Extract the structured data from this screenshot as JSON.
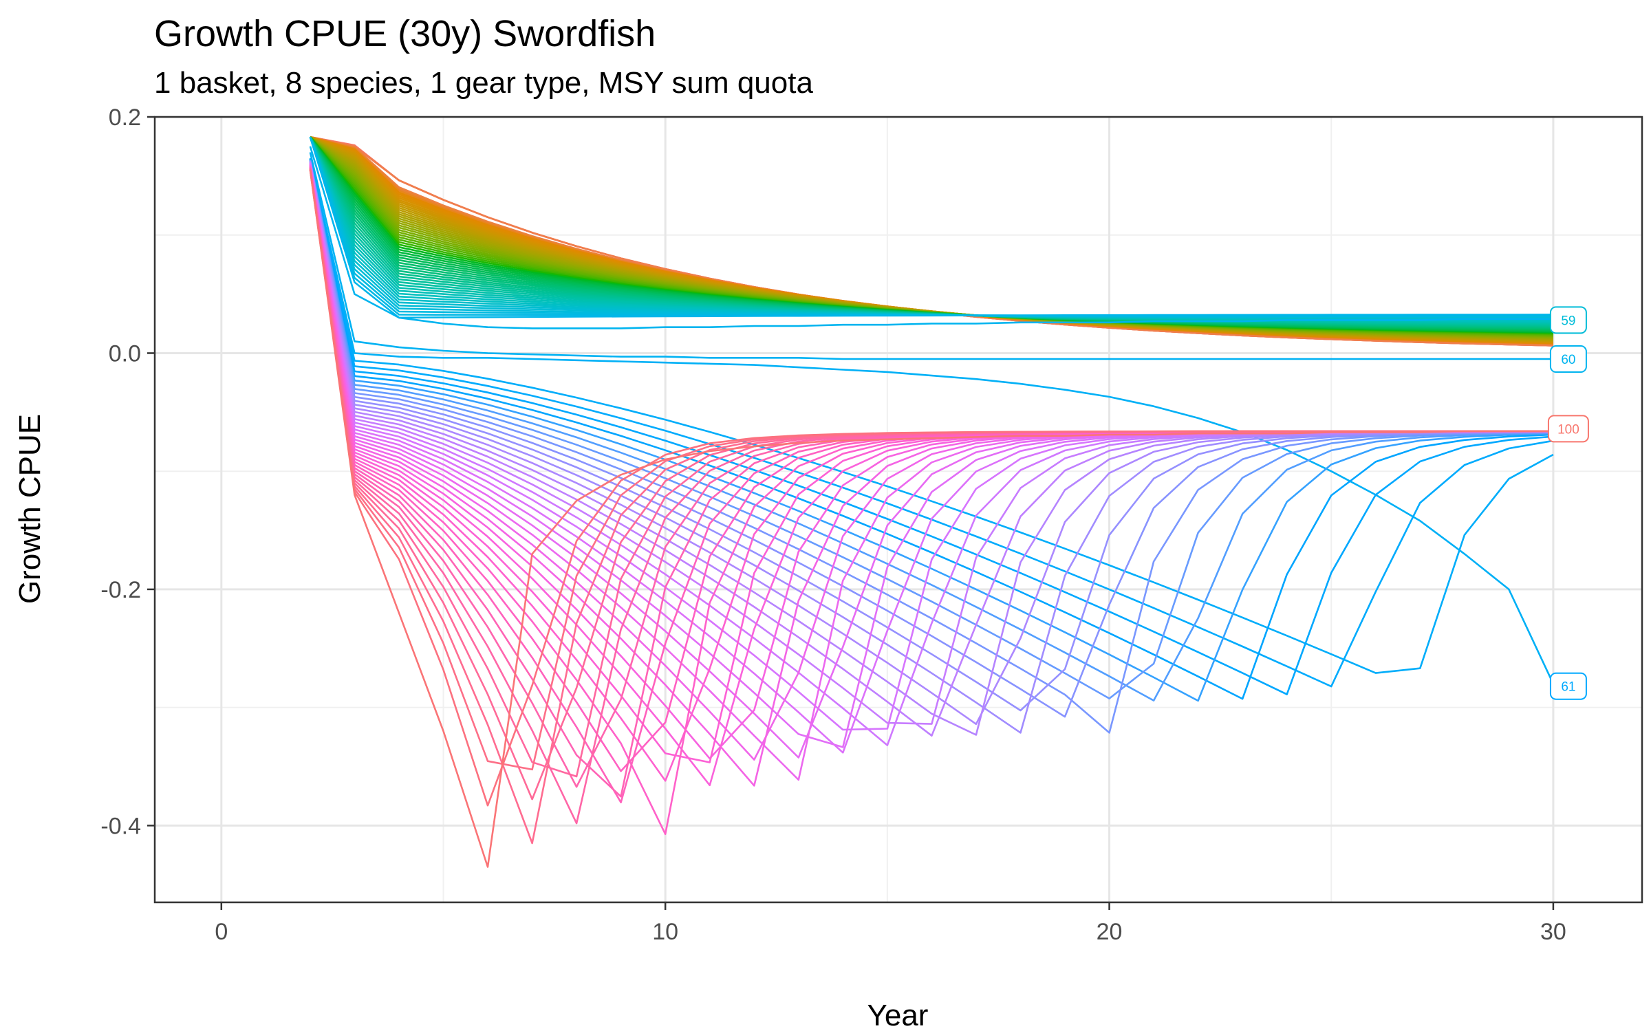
{
  "chart_data": {
    "type": "line",
    "title": "Growth CPUE (30y) Swordfish",
    "subtitle": "1 basket, 8 species, 1 gear type, MSY sum quota",
    "xlabel": "Year",
    "ylabel": "Growth CPUE",
    "xlim": [
      -1.5,
      32
    ],
    "ylim": [
      -0.465,
      0.2
    ],
    "x_ticks": [
      0,
      10,
      20,
      30
    ],
    "x_tick_labels": [
      "0",
      "10",
      "20",
      "30"
    ],
    "y_ticks": [
      0.2,
      0.0,
      -0.2,
      -0.4
    ],
    "y_tick_labels": [
      "0.2",
      "0.0",
      "-0.2",
      "-0.4"
    ],
    "grid": true,
    "legend": "none",
    "color_scale": "hue",
    "series_count": 100,
    "x": [
      2,
      3,
      4,
      5,
      6,
      7,
      8,
      9,
      10,
      11,
      12,
      13,
      14,
      15,
      16,
      17,
      18,
      19,
      20,
      21,
      22,
      23,
      24,
      25,
      26,
      27,
      28,
      29,
      30
    ],
    "representative_series": [
      {
        "name": "100",
        "color": "#F8766D",
        "values": [
          0.155,
          -0.12,
          -0.22,
          -0.32,
          -0.435,
          -0.17,
          -0.125,
          -0.103,
          -0.09,
          -0.083,
          -0.079,
          -0.076,
          -0.074,
          -0.073,
          -0.072,
          -0.071,
          -0.07,
          -0.07,
          -0.069,
          -0.069,
          -0.068,
          -0.068,
          -0.068,
          -0.067,
          -0.067,
          -0.067,
          -0.066,
          -0.066,
          -0.066
        ]
      },
      {
        "name": "61",
        "color": "#00A9FF",
        "values": [
          0.165,
          0.0,
          -0.003,
          -0.004,
          -0.004,
          -0.005,
          -0.006,
          -0.007,
          -0.008,
          -0.009,
          -0.01,
          -0.012,
          -0.014,
          -0.016,
          -0.019,
          -0.022,
          -0.026,
          -0.031,
          -0.037,
          -0.045,
          -0.055,
          -0.067,
          -0.082,
          -0.1,
          -0.12,
          -0.142,
          -0.17,
          -0.2,
          -0.28
        ]
      },
      {
        "name": "60",
        "color": "#00B4EF",
        "values": [
          0.17,
          0.01,
          0.005,
          0.002,
          0.0,
          -0.001,
          -0.002,
          -0.003,
          -0.003,
          -0.004,
          -0.004,
          -0.004,
          -0.005,
          -0.005,
          -0.005,
          -0.005,
          -0.005,
          -0.005,
          -0.005,
          -0.005,
          -0.005,
          -0.005,
          -0.005,
          -0.005,
          -0.005,
          -0.005,
          -0.005,
          -0.005,
          -0.005
        ]
      },
      {
        "name": "59",
        "color": "#00BCD8",
        "values": [
          0.175,
          0.05,
          0.03,
          0.025,
          0.022,
          0.021,
          0.021,
          0.021,
          0.022,
          0.022,
          0.023,
          0.023,
          0.024,
          0.024,
          0.025,
          0.025,
          0.026,
          0.026,
          0.026,
          0.027,
          0.027,
          0.027,
          0.028,
          0.028,
          0.028,
          0.028,
          0.029,
          0.029,
          0.029
        ]
      },
      {
        "name": "1",
        "color": "#F8766D",
        "values": [
          0.186,
          0.176,
          0.166,
          0.155,
          0.142,
          0.128,
          0.114,
          0.1,
          0.088,
          0.076,
          0.066,
          0.057,
          0.049,
          0.042,
          0.036,
          0.03,
          0.025,
          0.021,
          0.017,
          0.014,
          0.012,
          0.01,
          0.008,
          0.007,
          0.006,
          0.005,
          0.004,
          0.003,
          0.002
        ]
      }
    ],
    "end_labels": [
      {
        "text": "59",
        "y": 0.028,
        "color": "#00BCD8"
      },
      {
        "text": "60",
        "y": -0.005,
        "color": "#00B4EF"
      },
      {
        "text": "100",
        "y": -0.064,
        "color": "#F8766D"
      },
      {
        "text": "61",
        "y": -0.282,
        "color": "#00A9FF"
      }
    ]
  }
}
